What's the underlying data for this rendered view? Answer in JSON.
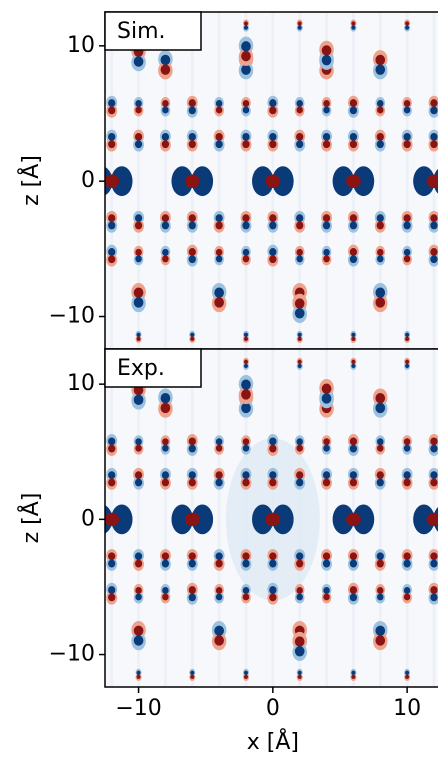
{
  "chart_data": [
    {
      "type": "image",
      "label": "Sim.",
      "ylabel": "z [Å]",
      "xlim": [
        -12.5,
        12.3
      ],
      "ylim": [
        -12.4,
        12.5
      ],
      "yticks": [
        {
          "value": -10,
          "label": "−10"
        },
        0,
        10
      ]
    },
    {
      "type": "image",
      "label": "Exp.",
      "ylabel": "z [Å]",
      "xlabel": "x [Å]",
      "xlim": [
        -12.5,
        12.3
      ],
      "ylim": [
        -12.4,
        12.6
      ],
      "xticks": [
        {
          "value": -10,
          "label": "−10"
        },
        0,
        10
      ],
      "yticks": [
        {
          "value": -10,
          "label": "−10"
        },
        0,
        10
      ]
    }
  ]
}
